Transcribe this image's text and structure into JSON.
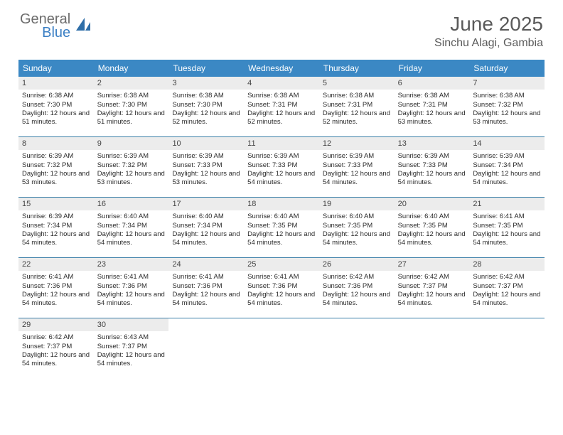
{
  "brand": {
    "word1": "General",
    "word2": "Blue"
  },
  "title": {
    "month_year": "June 2025",
    "location": "Sinchu Alagi, Gambia"
  },
  "colors": {
    "header_bg": "#3b88c4",
    "header_fg": "#ffffff",
    "daynum_bg": "#ececec",
    "week_border": "#3b7fa8",
    "logo_gray": "#6d6d6d",
    "logo_blue": "#3b7fc4",
    "text": "#2a2a2a"
  },
  "weekdays": [
    "Sunday",
    "Monday",
    "Tuesday",
    "Wednesday",
    "Thursday",
    "Friday",
    "Saturday"
  ],
  "weeks": [
    [
      {
        "n": "1",
        "sr": "6:38 AM",
        "ss": "7:30 PM",
        "dl": "12 hours and 51 minutes."
      },
      {
        "n": "2",
        "sr": "6:38 AM",
        "ss": "7:30 PM",
        "dl": "12 hours and 51 minutes."
      },
      {
        "n": "3",
        "sr": "6:38 AM",
        "ss": "7:30 PM",
        "dl": "12 hours and 52 minutes."
      },
      {
        "n": "4",
        "sr": "6:38 AM",
        "ss": "7:31 PM",
        "dl": "12 hours and 52 minutes."
      },
      {
        "n": "5",
        "sr": "6:38 AM",
        "ss": "7:31 PM",
        "dl": "12 hours and 52 minutes."
      },
      {
        "n": "6",
        "sr": "6:38 AM",
        "ss": "7:31 PM",
        "dl": "12 hours and 53 minutes."
      },
      {
        "n": "7",
        "sr": "6:38 AM",
        "ss": "7:32 PM",
        "dl": "12 hours and 53 minutes."
      }
    ],
    [
      {
        "n": "8",
        "sr": "6:39 AM",
        "ss": "7:32 PM",
        "dl": "12 hours and 53 minutes."
      },
      {
        "n": "9",
        "sr": "6:39 AM",
        "ss": "7:32 PM",
        "dl": "12 hours and 53 minutes."
      },
      {
        "n": "10",
        "sr": "6:39 AM",
        "ss": "7:33 PM",
        "dl": "12 hours and 53 minutes."
      },
      {
        "n": "11",
        "sr": "6:39 AM",
        "ss": "7:33 PM",
        "dl": "12 hours and 54 minutes."
      },
      {
        "n": "12",
        "sr": "6:39 AM",
        "ss": "7:33 PM",
        "dl": "12 hours and 54 minutes."
      },
      {
        "n": "13",
        "sr": "6:39 AM",
        "ss": "7:33 PM",
        "dl": "12 hours and 54 minutes."
      },
      {
        "n": "14",
        "sr": "6:39 AM",
        "ss": "7:34 PM",
        "dl": "12 hours and 54 minutes."
      }
    ],
    [
      {
        "n": "15",
        "sr": "6:39 AM",
        "ss": "7:34 PM",
        "dl": "12 hours and 54 minutes."
      },
      {
        "n": "16",
        "sr": "6:40 AM",
        "ss": "7:34 PM",
        "dl": "12 hours and 54 minutes."
      },
      {
        "n": "17",
        "sr": "6:40 AM",
        "ss": "7:34 PM",
        "dl": "12 hours and 54 minutes."
      },
      {
        "n": "18",
        "sr": "6:40 AM",
        "ss": "7:35 PM",
        "dl": "12 hours and 54 minutes."
      },
      {
        "n": "19",
        "sr": "6:40 AM",
        "ss": "7:35 PM",
        "dl": "12 hours and 54 minutes."
      },
      {
        "n": "20",
        "sr": "6:40 AM",
        "ss": "7:35 PM",
        "dl": "12 hours and 54 minutes."
      },
      {
        "n": "21",
        "sr": "6:41 AM",
        "ss": "7:35 PM",
        "dl": "12 hours and 54 minutes."
      }
    ],
    [
      {
        "n": "22",
        "sr": "6:41 AM",
        "ss": "7:36 PM",
        "dl": "12 hours and 54 minutes."
      },
      {
        "n": "23",
        "sr": "6:41 AM",
        "ss": "7:36 PM",
        "dl": "12 hours and 54 minutes."
      },
      {
        "n": "24",
        "sr": "6:41 AM",
        "ss": "7:36 PM",
        "dl": "12 hours and 54 minutes."
      },
      {
        "n": "25",
        "sr": "6:41 AM",
        "ss": "7:36 PM",
        "dl": "12 hours and 54 minutes."
      },
      {
        "n": "26",
        "sr": "6:42 AM",
        "ss": "7:36 PM",
        "dl": "12 hours and 54 minutes."
      },
      {
        "n": "27",
        "sr": "6:42 AM",
        "ss": "7:37 PM",
        "dl": "12 hours and 54 minutes."
      },
      {
        "n": "28",
        "sr": "6:42 AM",
        "ss": "7:37 PM",
        "dl": "12 hours and 54 minutes."
      }
    ],
    [
      {
        "n": "29",
        "sr": "6:42 AM",
        "ss": "7:37 PM",
        "dl": "12 hours and 54 minutes."
      },
      {
        "n": "30",
        "sr": "6:43 AM",
        "ss": "7:37 PM",
        "dl": "12 hours and 54 minutes."
      },
      null,
      null,
      null,
      null,
      null
    ]
  ],
  "labels": {
    "sunrise": "Sunrise:",
    "sunset": "Sunset:",
    "daylight": "Daylight:"
  }
}
